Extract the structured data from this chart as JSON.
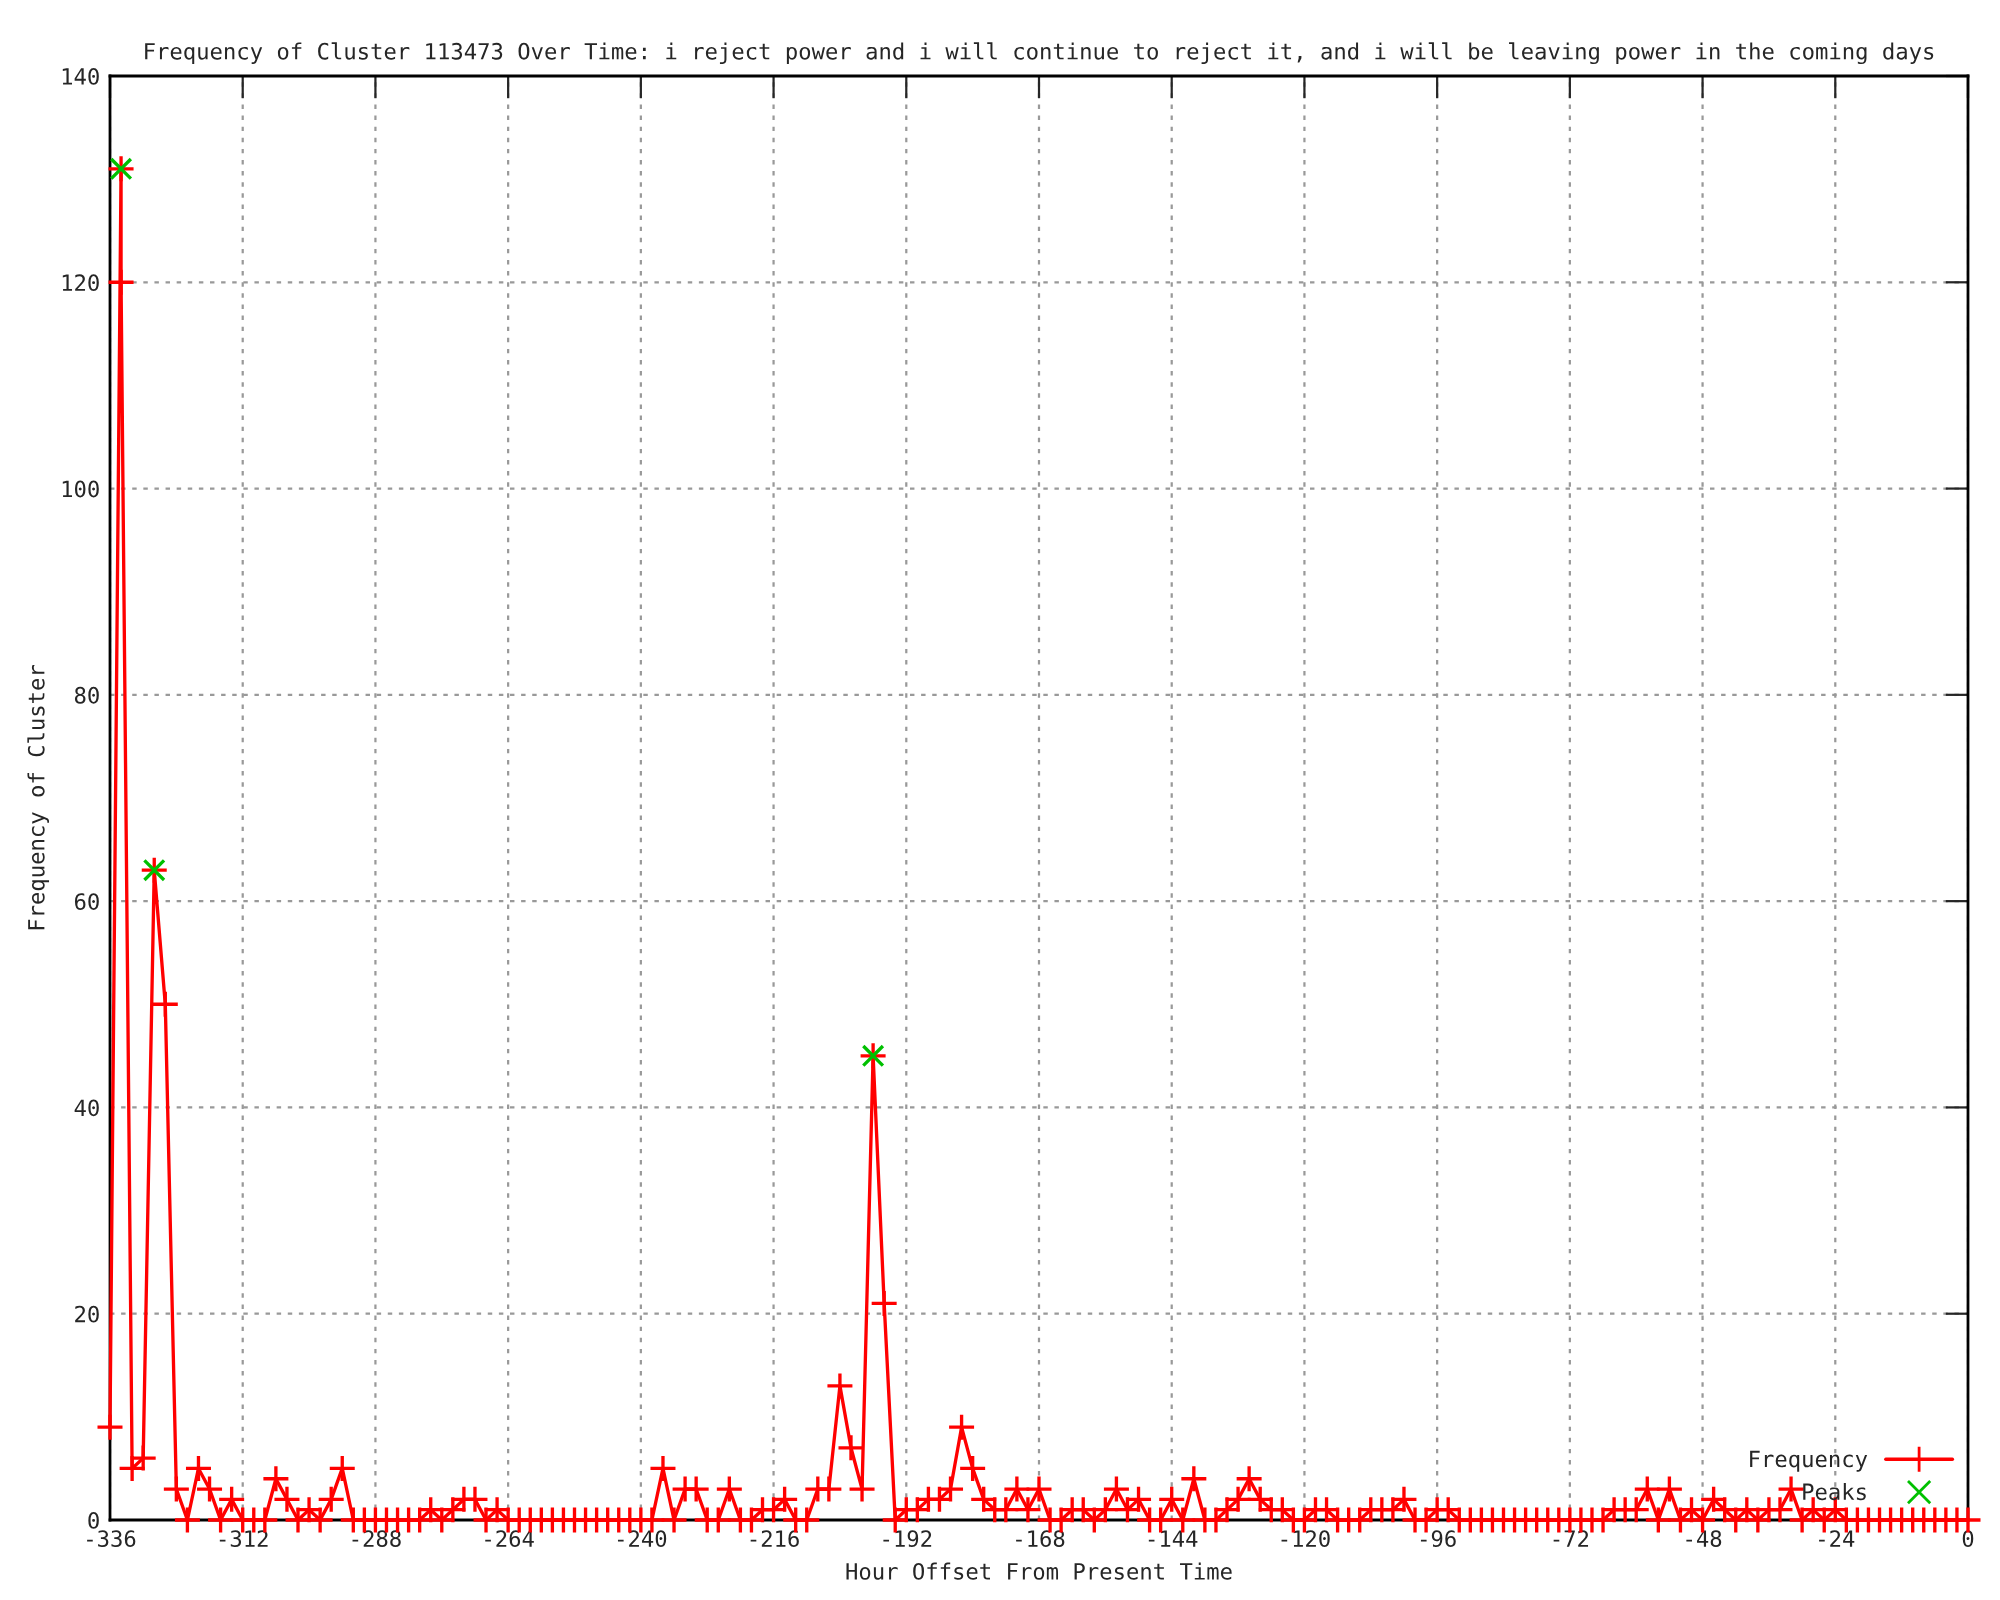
{
  "chart_data": {
    "type": "line",
    "title": "Frequency of Cluster 113473 Over Time: i reject power and i will continue to reject it, and i will be leaving power in the coming days",
    "xlabel": "Hour Offset From Present Time",
    "ylabel": "Frequency of Cluster",
    "xlim": [
      -336,
      0
    ],
    "xticks": [
      -336,
      -312,
      -288,
      -264,
      -240,
      -216,
      -192,
      -168,
      -144,
      -120,
      -96,
      -72,
      -48,
      -24,
      0
    ],
    "ylim": [
      0,
      140
    ],
    "yticks": [
      0,
      20,
      40,
      60,
      80,
      100,
      120,
      140
    ],
    "grid": true,
    "legend": "bottom right",
    "series": [
      {
        "name": "Frequency",
        "color": "#ff0000",
        "marker": "cross",
        "line_style": "solid",
        "x": [
          -336,
          -334,
          -334,
          -332,
          -330,
          -328,
          -326,
          -324,
          -322,
          -320,
          -318,
          -316,
          -314,
          -312,
          -310,
          -308,
          -306,
          -304,
          -302,
          -300,
          -298,
          -296,
          -294,
          -292,
          -290,
          -288,
          -286,
          -284,
          -282,
          -280,
          -278,
          -276,
          -274,
          -272,
          -270,
          -268,
          -266,
          -264,
          -262,
          -260,
          -258,
          -256,
          -254,
          -252,
          -250,
          -248,
          -246,
          -244,
          -242,
          -240,
          -238,
          -236,
          -234,
          -232,
          -230,
          -228,
          -226,
          -224,
          -222,
          -220,
          -218,
          -216,
          -214,
          -212,
          -210,
          -208,
          -206,
          -204,
          -202,
          -200,
          -198,
          -196,
          -194,
          -192,
          -190,
          -188,
          -186,
          -184,
          -182,
          -180,
          -178,
          -176,
          -174,
          -172,
          -170,
          -168,
          -166,
          -164,
          -162,
          -160,
          -158,
          -156,
          -154,
          -152,
          -150,
          -148,
          -146,
          -144,
          -142,
          -140,
          -138,
          -136,
          -134,
          -132,
          -130,
          -128,
          -126,
          -124,
          -122,
          -120,
          -118,
          -116,
          -114,
          -112,
          -110,
          -108,
          -106,
          -104,
          -102,
          -100,
          -98,
          -96,
          -94,
          -92,
          -90,
          -88,
          -86,
          -84,
          -82,
          -80,
          -78,
          -76,
          -74,
          -72,
          -70,
          -68,
          -66,
          -64,
          -62,
          -60,
          -58,
          -56,
          -54,
          -52,
          -50,
          -48,
          -46,
          -44,
          -42,
          -40,
          -38,
          -36,
          -34,
          -32,
          -30,
          -28,
          -26,
          -24,
          -22,
          -20,
          -18,
          -16,
          -14,
          -12,
          -10,
          -8,
          -6,
          -4,
          -2,
          0
        ],
        "values": [
          9,
          131,
          120,
          5,
          6,
          63,
          50,
          3,
          0,
          5,
          3,
          0,
          2,
          0,
          0,
          0,
          4,
          2,
          0,
          1,
          0,
          2,
          5,
          0,
          0,
          0,
          0,
          0,
          0,
          0,
          1,
          0,
          1,
          2,
          2,
          0,
          1,
          0,
          0,
          0,
          0,
          0,
          0,
          0,
          0,
          0,
          0,
          0,
          0,
          0,
          0,
          5,
          0,
          3,
          3,
          0,
          0,
          3,
          0,
          0,
          1,
          1,
          2,
          0,
          0,
          3,
          3,
          13,
          7,
          3,
          45,
          21,
          0,
          1,
          1,
          2,
          2,
          3,
          9,
          5,
          2,
          1,
          1,
          3,
          1,
          3,
          0,
          0,
          1,
          1,
          0,
          1,
          3,
          1,
          2,
          0,
          0,
          2,
          0,
          4,
          0,
          0,
          1,
          2,
          4,
          2,
          1,
          1,
          0,
          0,
          1,
          1,
          0,
          0,
          0,
          1,
          1,
          1,
          2,
          0,
          0,
          1,
          1,
          0,
          0,
          0,
          0,
          0,
          0,
          0,
          0,
          0,
          0,
          0,
          0,
          0,
          0,
          1,
          1,
          1,
          3,
          0,
          3,
          0,
          1,
          0,
          2,
          1,
          0,
          1,
          0,
          1,
          1,
          3,
          0,
          1,
          0,
          1,
          0,
          0,
          0,
          0,
          0,
          0,
          0,
          0,
          0,
          0,
          0,
          0
        ]
      },
      {
        "name": "Peaks",
        "type": "scatter",
        "color": "#00c000",
        "marker": "cross",
        "x": [
          -334,
          -328,
          -198
        ],
        "values": [
          131,
          63,
          45
        ]
      }
    ]
  }
}
